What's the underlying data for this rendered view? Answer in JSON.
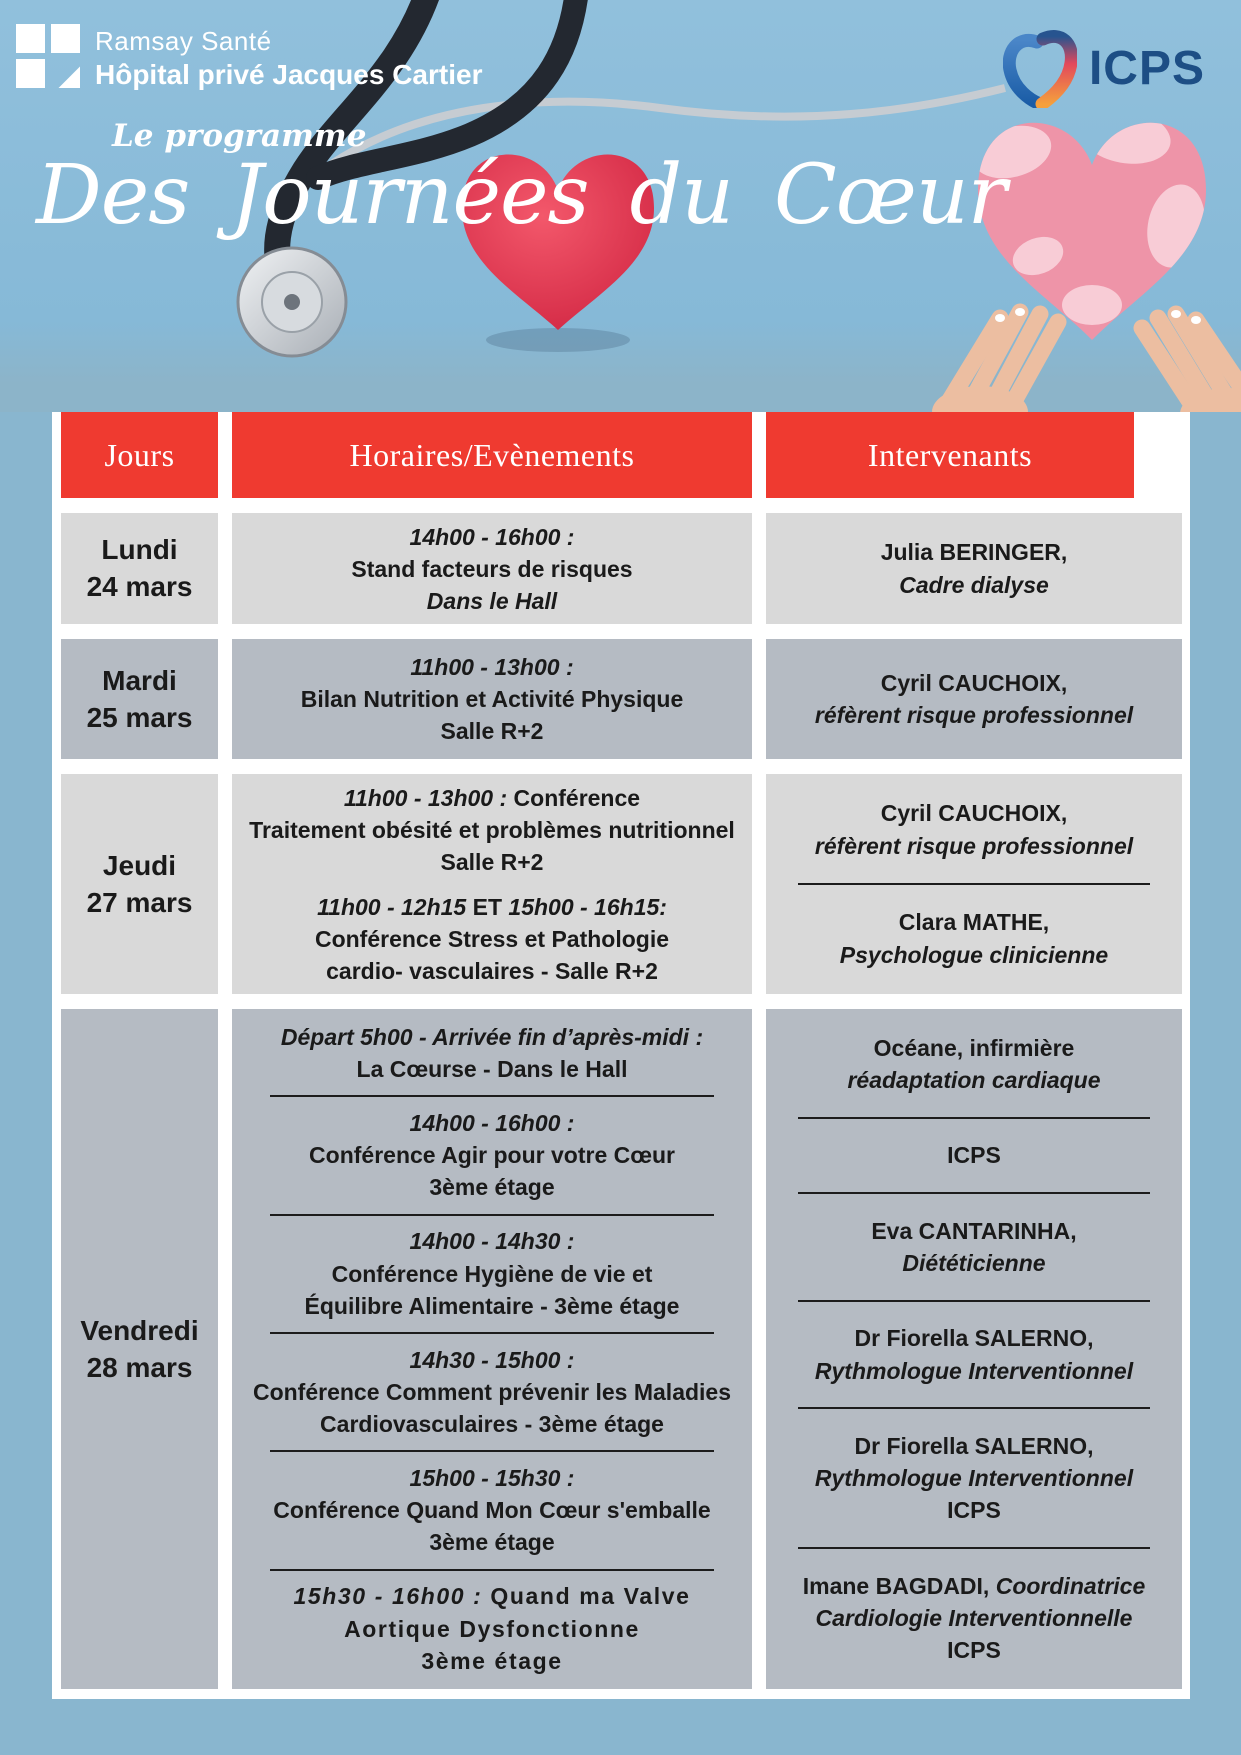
{
  "colors": {
    "accent_red": "#ef3a30",
    "icps_navy": "#1d4e85",
    "cell_light": "#d9d9d9",
    "cell_dark": "#b5bbc3",
    "page_blue": "#89b6cf",
    "text_dark": "#1a1a1a",
    "heart_red": "#d83048",
    "heart_pink": "#ee94a8"
  },
  "header": {
    "brand_line1": "Ramsay Santé",
    "brand_line2": "Hôpital privé Jacques Cartier",
    "icps_label": "ICPS",
    "kicker": "Le programme",
    "title": "Des Journées du Cœur"
  },
  "table": {
    "columns": [
      "Jours",
      "Horaires/Evènements",
      "Intervenants"
    ],
    "rows": [
      {
        "day": "Lundi",
        "date": "24 mars",
        "tone": "light",
        "events": [
          {
            "lines": [
              [
                {
                  "t": "14h00 - 16h00 :",
                  "s": "bi"
                }
              ],
              [
                {
                  "t": "Stand facteurs de risques",
                  "s": "b"
                }
              ],
              [
                {
                  "t": "Dans le Hall",
                  "s": "bi"
                }
              ]
            ]
          }
        ],
        "speakers": [
          {
            "lines": [
              [
                {
                  "t": "Julia BERINGER,",
                  "s": "b"
                }
              ],
              [
                {
                  "t": "Cadre dialyse",
                  "s": "bi"
                }
              ]
            ]
          }
        ]
      },
      {
        "day": "Mardi",
        "date": "25 mars",
        "tone": "dark",
        "events": [
          {
            "lines": [
              [
                {
                  "t": "11h00 - 13h00 :",
                  "s": "bi"
                }
              ],
              [
                {
                  "t": "Bilan Nutrition et Activité Physique",
                  "s": "b"
                }
              ],
              [
                {
                  "t": "Salle R+2",
                  "s": "b"
                }
              ]
            ]
          }
        ],
        "speakers": [
          {
            "lines": [
              [
                {
                  "t": "Cyril CAUCHOIX,",
                  "s": "b"
                }
              ],
              [
                {
                  "t": "réfèrent risque professionnel",
                  "s": "bi"
                }
              ]
            ]
          }
        ]
      },
      {
        "day": "Jeudi",
        "date": "27 mars",
        "tone": "light",
        "events": [
          {
            "lines": [
              [
                {
                  "t": "11h00 - 13h00 : ",
                  "s": "bi"
                },
                {
                  "t": "Conférence",
                  "s": "b"
                }
              ],
              [
                {
                  "t": "Traitement obésité et problèmes nutritionnel",
                  "s": "b"
                }
              ],
              [
                {
                  "t": "Salle R+2",
                  "s": "b"
                }
              ]
            ]
          },
          {
            "lines": [
              [
                {
                  "t": "11h00 - 12h15 ",
                  "s": "bi"
                },
                {
                  "t": "ET",
                  "s": "b"
                },
                {
                  "t": " 15h00 - 16h15:",
                  "s": "bi"
                }
              ],
              [
                {
                  "t": "Conférence Stress et Pathologie",
                  "s": "b"
                }
              ],
              [
                {
                  "t": "cardio- vasculaires - Salle R+2",
                  "s": "b"
                }
              ]
            ]
          }
        ],
        "speakers": [
          {
            "lines": [
              [
                {
                  "t": "Cyril CAUCHOIX,",
                  "s": "b"
                }
              ],
              [
                {
                  "t": "réfèrent risque professionnel",
                  "s": "bi"
                }
              ]
            ]
          },
          {
            "lines": [
              [
                {
                  "t": "Clara MATHE,",
                  "s": "b"
                }
              ],
              [
                {
                  "t": "Psychologue clinicienne",
                  "s": "bi"
                }
              ]
            ]
          }
        ]
      },
      {
        "day": "Vendredi",
        "date": "28 mars",
        "tone": "dark",
        "events": [
          {
            "lines": [
              [
                {
                  "t": "Départ 5h00 - Arrivée fin d’après-midi :",
                  "s": "bi"
                }
              ],
              [
                {
                  "t": "La Cœurse - Dans le Hall",
                  "s": "b"
                }
              ]
            ]
          },
          {
            "lines": [
              [
                {
                  "t": "14h00 - 16h00 :",
                  "s": "bi"
                }
              ],
              [
                {
                  "t": "Conférence Agir pour votre Cœur",
                  "s": "b"
                }
              ],
              [
                {
                  "t": "3ème étage",
                  "s": "b"
                }
              ]
            ]
          },
          {
            "lines": [
              [
                {
                  "t": "14h00 - 14h30 :",
                  "s": "bi"
                }
              ],
              [
                {
                  "t": "Conférence Hygiène de vie et",
                  "s": "b"
                }
              ],
              [
                {
                  "t": "Équilibre Alimentaire - 3ème étage",
                  "s": "b"
                }
              ]
            ]
          },
          {
            "lines": [
              [
                {
                  "t": "14h30 - 15h00 :",
                  "s": "bi"
                }
              ],
              [
                {
                  "t": "Conférence Comment prévenir les Maladies",
                  "s": "b"
                }
              ],
              [
                {
                  "t": "Cardiovasculaires - 3ème étage",
                  "s": "b"
                }
              ]
            ]
          },
          {
            "lines": [
              [
                {
                  "t": "15h00 - 15h30 :",
                  "s": "bi"
                }
              ],
              [
                {
                  "t": "Conférence Quand Mon Cœur s'emballe",
                  "s": "b"
                }
              ],
              [
                {
                  "t": "3ème étage",
                  "s": "b"
                }
              ]
            ]
          },
          {
            "sp": true,
            "lines": [
              [
                {
                  "t": "15h30 - 16h00 : ",
                  "s": "bi"
                },
                {
                  "t": "Quand ma Valve",
                  "s": "b"
                }
              ],
              [
                {
                  "t": "Aortique Dysfonctionne",
                  "s": "b"
                }
              ],
              [
                {
                  "t": "3ème étage",
                  "s": "b"
                }
              ]
            ]
          }
        ],
        "speakers": [
          {
            "lines": [
              [
                {
                  "t": "Océane, infirmière",
                  "s": "b"
                }
              ],
              [
                {
                  "t": "réadaptation cardiaque",
                  "s": "bi"
                }
              ]
            ]
          },
          {
            "lines": [
              [
                {
                  "t": "ICPS",
                  "s": "b"
                }
              ]
            ]
          },
          {
            "lines": [
              [
                {
                  "t": "Eva CANTARINHA,",
                  "s": "b"
                }
              ],
              [
                {
                  "t": "Diététicienne",
                  "s": "bi"
                }
              ]
            ]
          },
          {
            "lines": [
              [
                {
                  "t": "Dr Fiorella SALERNO,",
                  "s": "b"
                }
              ],
              [
                {
                  "t": "Rythmologue Interventionnel",
                  "s": "bi"
                }
              ]
            ]
          },
          {
            "lines": [
              [
                {
                  "t": "Dr Fiorella SALERNO,",
                  "s": "b"
                }
              ],
              [
                {
                  "t": "Rythmologue Interventionnel",
                  "s": "bi"
                }
              ],
              [
                {
                  "t": "ICPS",
                  "s": "b"
                }
              ]
            ]
          },
          {
            "lines": [
              [
                {
                  "t": "Imane BAGDADI, ",
                  "s": "b"
                },
                {
                  "t": "Coordinatrice",
                  "s": "bi"
                }
              ],
              [
                {
                  "t": "Cardiologie Interventionnelle",
                  "s": "bi"
                }
              ],
              [
                {
                  "t": "ICPS",
                  "s": "b"
                }
              ]
            ]
          }
        ]
      }
    ]
  }
}
